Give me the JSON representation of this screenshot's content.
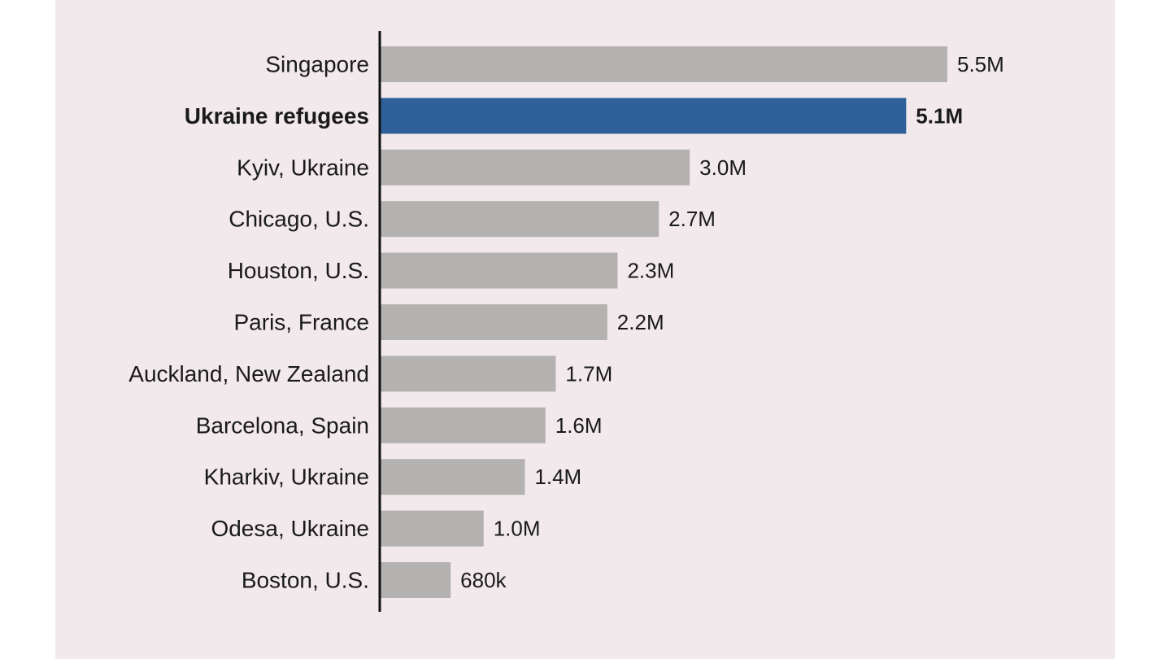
{
  "colors": {
    "background": "#f1e9eb",
    "bar_default": "#b4b1b1",
    "bar_highlight": "#2f6099",
    "text_default": "#1a1a1a",
    "text_highlight": "#2f6099",
    "axis": "#111111"
  },
  "chart_data": {
    "type": "bar",
    "orientation": "horizontal",
    "title": "",
    "xlabel": "",
    "ylabel": "",
    "xlim": [
      0,
      5500000
    ],
    "grid": false,
    "legend": "none",
    "categories": [
      "Singapore",
      "Ukraine refugees",
      "Kyiv, Ukraine",
      "Chicago, U.S.",
      "Houston, U.S.",
      "Paris, France",
      "Auckland, New Zealand",
      "Barcelona, Spain",
      "Kharkiv, Ukraine",
      "Odesa, Ukraine",
      "Boston, U.S."
    ],
    "values": [
      5500000,
      5100000,
      3000000,
      2700000,
      2300000,
      2200000,
      1700000,
      1600000,
      1400000,
      1000000,
      680000
    ],
    "value_labels": [
      "5.5M",
      "5.1M",
      "3.0M",
      "2.7M",
      "2.3M",
      "2.2M",
      "1.7M",
      "1.6M",
      "1.4M",
      "1.0M",
      "680k"
    ],
    "highlight_category": "Ukraine refugees"
  }
}
